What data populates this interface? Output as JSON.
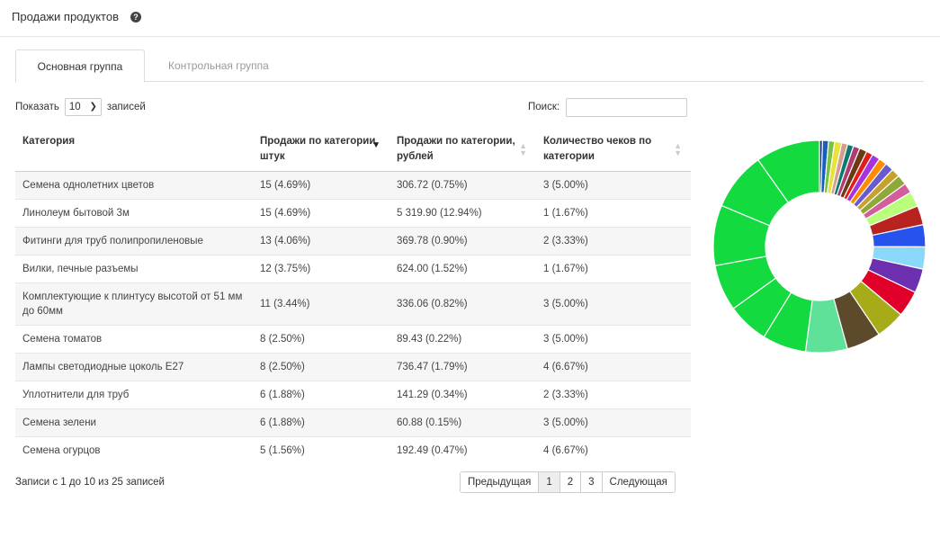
{
  "header": {
    "title": "Продажи продуктов",
    "help_icon": "question-circle-icon"
  },
  "tabs": [
    {
      "label": "Основная группа",
      "active": true
    },
    {
      "label": "Контрольная группа",
      "active": false
    }
  ],
  "table_controls": {
    "show_label": "Показать",
    "page_length": "10",
    "entries_label": "записей",
    "search_label": "Поиск:",
    "search_value": ""
  },
  "table": {
    "columns": [
      "Категория",
      "Продажи по категории, штук",
      "Продажи по категории, рублей",
      "Количество чеков по категории"
    ],
    "rows": [
      [
        "Семена однолетних цветов",
        "15 (4.69%)",
        "306.72 (0.75%)",
        "3 (5.00%)"
      ],
      [
        "Линолеум бытовой 3м",
        "15 (4.69%)",
        "5 319.90 (12.94%)",
        "1 (1.67%)"
      ],
      [
        "Фитинги для труб полипропиленовые",
        "13 (4.06%)",
        "369.78 (0.90%)",
        "2 (3.33%)"
      ],
      [
        "Вилки, печные разъемы",
        "12 (3.75%)",
        "624.00 (1.52%)",
        "1 (1.67%)"
      ],
      [
        "Комплектующие к плинтусу высотой от 51 мм до 60мм",
        "11 (3.44%)",
        "336.06 (0.82%)",
        "3 (5.00%)"
      ],
      [
        "Семена томатов",
        "8 (2.50%)",
        "89.43 (0.22%)",
        "3 (5.00%)"
      ],
      [
        "Лампы светодиодные цоколь E27",
        "8 (2.50%)",
        "736.47 (1.79%)",
        "4 (6.67%)"
      ],
      [
        "Уплотнители для труб",
        "6 (1.88%)",
        "141.29 (0.34%)",
        "2 (3.33%)"
      ],
      [
        "Семена зелени",
        "6 (1.88%)",
        "60.88 (0.15%)",
        "3 (5.00%)"
      ],
      [
        "Семена огурцов",
        "5 (1.56%)",
        "192.49 (0.47%)",
        "4 (6.67%)"
      ]
    ]
  },
  "footer": {
    "info": "Записи с 1 до 10 из 25 записей",
    "pagination": [
      "Предыдущая",
      "1",
      "2",
      "3",
      "Следующая"
    ],
    "current_page": "1"
  },
  "chart_data": {
    "type": "pie",
    "variant": "donut",
    "values": [
      0.6,
      1.2,
      1.2,
      1.4,
      1.2,
      1.2,
      1.3,
      1.5,
      1.3,
      1.6,
      1.6,
      1.7,
      1.7,
      2.0,
      2.0,
      3.0,
      3.8,
      4.4,
      4.4,
      4.8,
      5.2,
      5.8,
      6.8,
      8.3,
      8.7,
      8.2,
      9.2,
      12.0,
      11.6,
      12.8
    ],
    "colors": [
      "#1f2a7a",
      "#1560bd",
      "#7cc142",
      "#e8e23a",
      "#d59d8e",
      "#0d7a6e",
      "#b03a72",
      "#6b3a11",
      "#e31b1b",
      "#a633e0",
      "#ff8c00",
      "#6a5acd",
      "#c7a12b",
      "#8ea83a",
      "#d35e9b",
      "#b9ff7c",
      "#b8221f",
      "#2652ee",
      "#8ad8fa",
      "#6b2fb0",
      "#e1002a",
      "#a7ab18",
      "#5c4a2b",
      "#5fe19a",
      "#13db3f",
      "#13db3f",
      "#13db3f",
      "#13db3f",
      "#13db3f",
      "#13db3f"
    ],
    "start_angle_deg": 0
  }
}
